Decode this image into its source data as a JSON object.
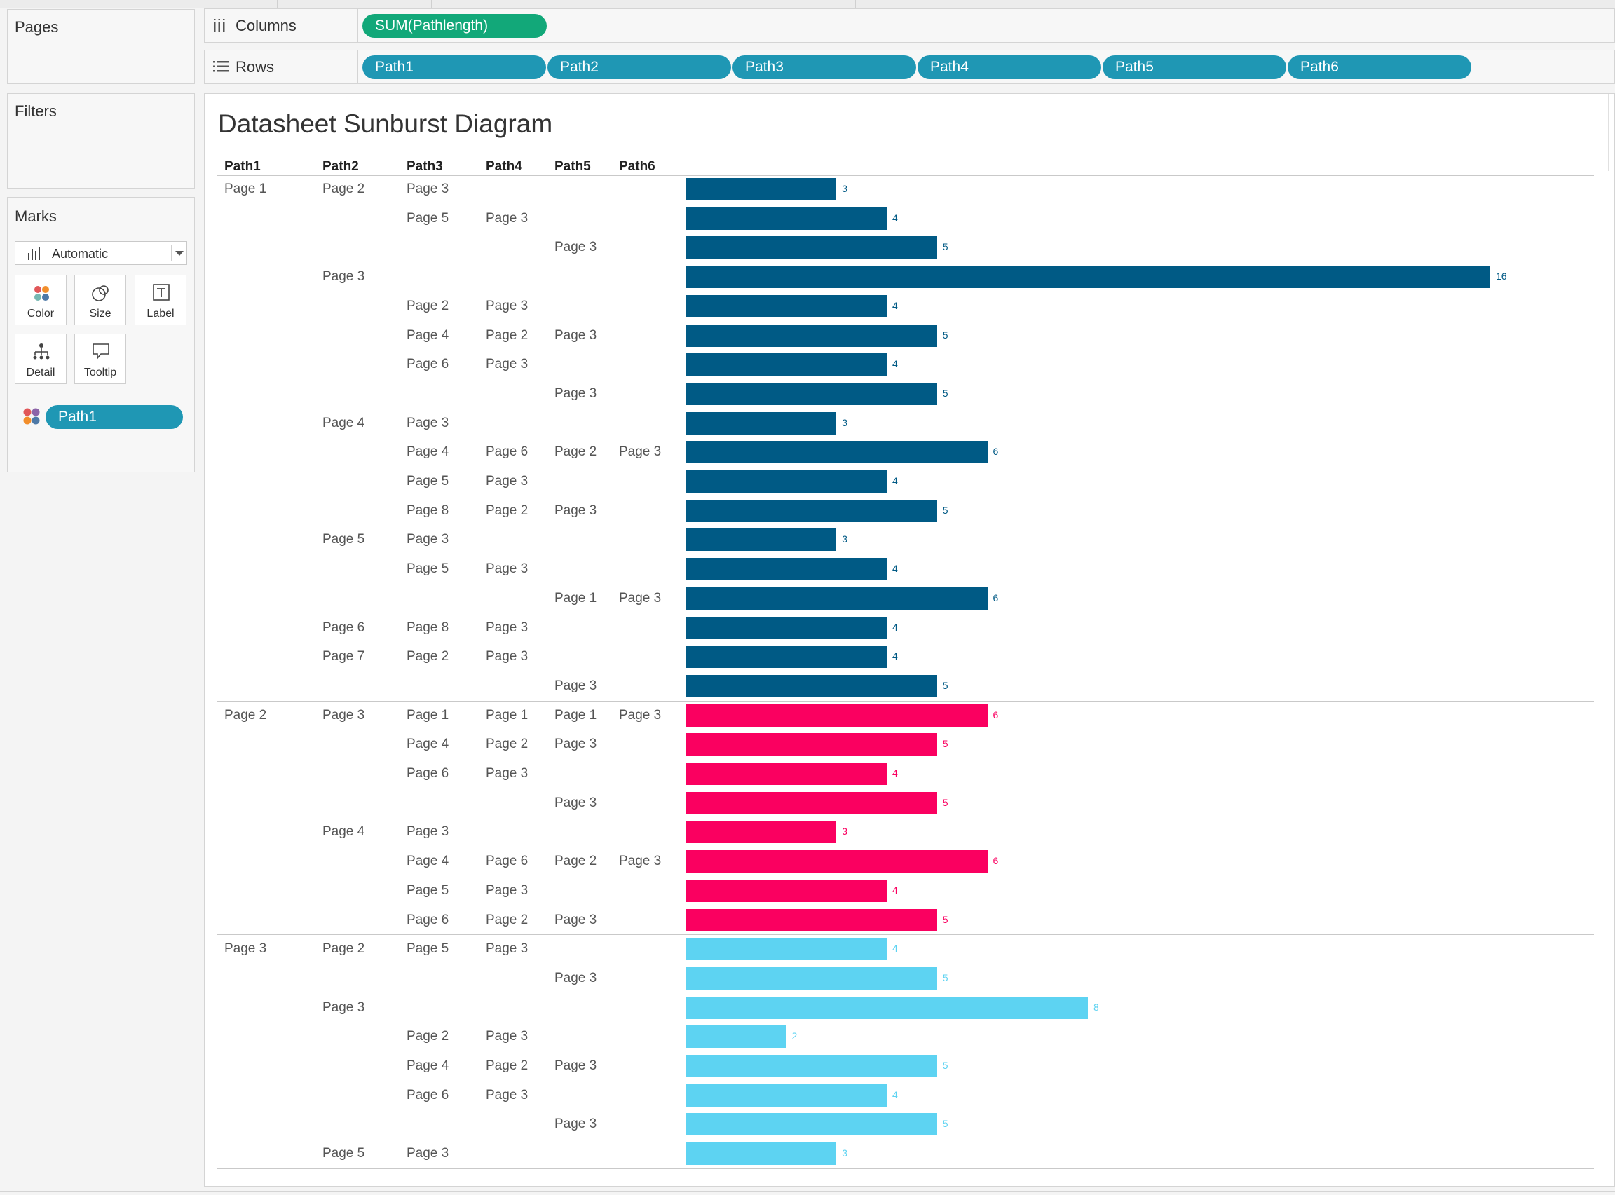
{
  "cards": {
    "pages_title": "Pages",
    "filters_title": "Filters",
    "marks_title": "Marks"
  },
  "marks": {
    "mark_type": "Automatic",
    "buttons": {
      "color": "Color",
      "size": "Size",
      "label": "Label",
      "detail": "Detail",
      "tooltip": "Tooltip"
    },
    "color_pill": "Path1"
  },
  "shelves": {
    "columns_label": "Columns",
    "rows_label": "Rows",
    "columns_pill": "SUM(Pathlength)",
    "rows_pills": [
      "Path1",
      "Path2",
      "Path3",
      "Path4",
      "Path5",
      "Path6"
    ]
  },
  "colors": {
    "page1": "#005a85",
    "page2": "#fa0060",
    "page3": "#5dd3f2",
    "pill_blue": "#1f97b4",
    "pill_green": "#12a879"
  },
  "chart_data": {
    "type": "bar",
    "title": "Datasheet Sunburst Diagram",
    "columns": [
      "Path1",
      "Path2",
      "Path3",
      "Path4",
      "Path5",
      "Path6"
    ],
    "measure": "SUM(Pathlength)",
    "color_by": "Path1",
    "rows": [
      {
        "path": [
          "Page 1",
          "Page 2",
          "Page 3",
          "",
          "",
          ""
        ],
        "value": 3
      },
      {
        "path": [
          "",
          "",
          "Page 5",
          "Page 3",
          "",
          ""
        ],
        "value": 4
      },
      {
        "path": [
          "",
          "",
          "",
          "",
          "Page 3",
          ""
        ],
        "value": 5
      },
      {
        "path": [
          "",
          "Page 3",
          "",
          "",
          "",
          ""
        ],
        "value": 16
      },
      {
        "path": [
          "",
          "",
          "Page 2",
          "Page 3",
          "",
          ""
        ],
        "value": 4
      },
      {
        "path": [
          "",
          "",
          "Page 4",
          "Page 2",
          "Page 3",
          ""
        ],
        "value": 5
      },
      {
        "path": [
          "",
          "",
          "Page 6",
          "Page 3",
          "",
          ""
        ],
        "value": 4
      },
      {
        "path": [
          "",
          "",
          "",
          "",
          "Page 3",
          ""
        ],
        "value": 5
      },
      {
        "path": [
          "",
          "Page 4",
          "Page 3",
          "",
          "",
          ""
        ],
        "value": 3
      },
      {
        "path": [
          "",
          "",
          "Page 4",
          "Page 6",
          "Page 2",
          "Page 3"
        ],
        "value": 6
      },
      {
        "path": [
          "",
          "",
          "Page 5",
          "Page 3",
          "",
          ""
        ],
        "value": 4
      },
      {
        "path": [
          "",
          "",
          "Page 8",
          "Page 2",
          "Page 3",
          ""
        ],
        "value": 5
      },
      {
        "path": [
          "",
          "Page 5",
          "Page 3",
          "",
          "",
          ""
        ],
        "value": 3
      },
      {
        "path": [
          "",
          "",
          "Page 5",
          "Page 3",
          "",
          ""
        ],
        "value": 4
      },
      {
        "path": [
          "",
          "",
          "",
          "",
          "Page 1",
          "Page 3"
        ],
        "value": 6
      },
      {
        "path": [
          "",
          "Page 6",
          "Page 8",
          "Page 3",
          "",
          ""
        ],
        "value": 4
      },
      {
        "path": [
          "",
          "Page 7",
          "Page 2",
          "Page 3",
          "",
          ""
        ],
        "value": 4
      },
      {
        "path": [
          "",
          "",
          "",
          "",
          "Page 3",
          ""
        ],
        "value": 5
      },
      {
        "path": [
          "Page 2",
          "Page 3",
          "Page 1",
          "Page 1",
          "Page 1",
          "Page 3"
        ],
        "value": 6
      },
      {
        "path": [
          "",
          "",
          "Page 4",
          "Page 2",
          "Page 3",
          ""
        ],
        "value": 5
      },
      {
        "path": [
          "",
          "",
          "Page 6",
          "Page 3",
          "",
          ""
        ],
        "value": 4
      },
      {
        "path": [
          "",
          "",
          "",
          "",
          "Page 3",
          ""
        ],
        "value": 5
      },
      {
        "path": [
          "",
          "Page 4",
          "Page 3",
          "",
          "",
          ""
        ],
        "value": 3
      },
      {
        "path": [
          "",
          "",
          "Page 4",
          "Page 6",
          "Page 2",
          "Page 3"
        ],
        "value": 6
      },
      {
        "path": [
          "",
          "",
          "Page 5",
          "Page 3",
          "",
          ""
        ],
        "value": 4
      },
      {
        "path": [
          "",
          "",
          "Page 6",
          "Page 2",
          "Page 3",
          ""
        ],
        "value": 5
      },
      {
        "path": [
          "Page 3",
          "Page 2",
          "Page 5",
          "Page 3",
          "",
          ""
        ],
        "value": 4
      },
      {
        "path": [
          "",
          "",
          "",
          "",
          "Page 3",
          ""
        ],
        "value": 5
      },
      {
        "path": [
          "",
          "Page 3",
          "",
          "",
          "",
          ""
        ],
        "value": 8
      },
      {
        "path": [
          "",
          "",
          "Page 2",
          "Page 3",
          "",
          ""
        ],
        "value": 2
      },
      {
        "path": [
          "",
          "",
          "Page 4",
          "Page 2",
          "Page 3",
          ""
        ],
        "value": 5
      },
      {
        "path": [
          "",
          "",
          "Page 6",
          "Page 3",
          "",
          ""
        ],
        "value": 4
      },
      {
        "path": [
          "",
          "",
          "",
          "",
          "Page 3",
          ""
        ],
        "value": 5
      },
      {
        "path": [
          "",
          "Page 5",
          "Page 3",
          "",
          "",
          ""
        ],
        "value": 3
      }
    ]
  }
}
